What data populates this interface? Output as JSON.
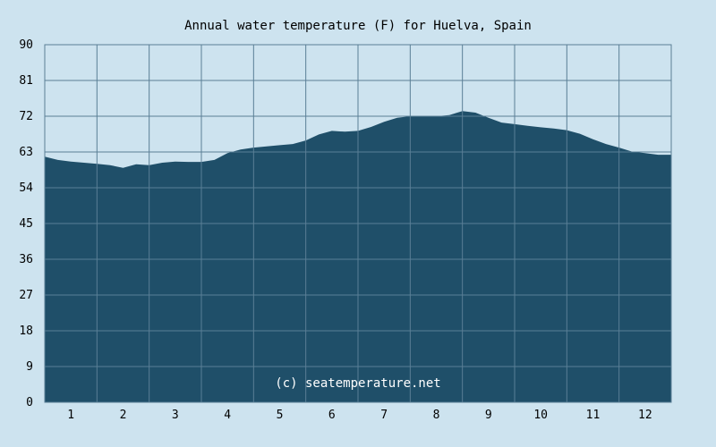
{
  "chart_data": {
    "type": "area",
    "title": "Annual water temperature (F) for Huelva, Spain",
    "xlabel": "",
    "ylabel": "",
    "x_ticks": [
      "1",
      "2",
      "3",
      "4",
      "5",
      "6",
      "7",
      "8",
      "9",
      "10",
      "11",
      "12"
    ],
    "y_ticks": [
      "0",
      "9",
      "18",
      "27",
      "36",
      "45",
      "54",
      "63",
      "72",
      "81",
      "90"
    ],
    "ylim": [
      0,
      90
    ],
    "xlim": [
      0.5,
      12.5
    ],
    "grid": true,
    "series": [
      {
        "values": [
          [
            0.5,
            61.8
          ],
          [
            0.75,
            61.0
          ],
          [
            1.0,
            60.6
          ],
          [
            1.25,
            60.3
          ],
          [
            1.5,
            60.0
          ],
          [
            1.75,
            59.7
          ],
          [
            2.0,
            59.0
          ],
          [
            2.25,
            59.9
          ],
          [
            2.5,
            59.7
          ],
          [
            2.75,
            60.3
          ],
          [
            3.0,
            60.6
          ],
          [
            3.25,
            60.5
          ],
          [
            3.5,
            60.5
          ],
          [
            3.75,
            61.0
          ],
          [
            4.0,
            62.7
          ],
          [
            4.25,
            63.6
          ],
          [
            4.5,
            64.1
          ],
          [
            4.75,
            64.4
          ],
          [
            5.0,
            64.7
          ],
          [
            5.25,
            65.0
          ],
          [
            5.5,
            65.9
          ],
          [
            5.75,
            67.4
          ],
          [
            6.0,
            68.3
          ],
          [
            6.25,
            68.1
          ],
          [
            6.5,
            68.3
          ],
          [
            6.75,
            69.3
          ],
          [
            7.0,
            70.6
          ],
          [
            7.25,
            71.6
          ],
          [
            7.5,
            72.0
          ],
          [
            7.75,
            72.1
          ],
          [
            8.0,
            72.0
          ],
          [
            8.25,
            72.3
          ],
          [
            8.5,
            73.3
          ],
          [
            8.75,
            72.9
          ],
          [
            9.0,
            71.6
          ],
          [
            9.25,
            70.4
          ],
          [
            9.5,
            70.0
          ],
          [
            9.75,
            69.6
          ],
          [
            10.0,
            69.2
          ],
          [
            10.25,
            68.9
          ],
          [
            10.5,
            68.5
          ],
          [
            10.75,
            67.6
          ],
          [
            11.0,
            66.2
          ],
          [
            11.25,
            65.0
          ],
          [
            11.5,
            64.1
          ],
          [
            11.75,
            63.1
          ],
          [
            12.0,
            62.7
          ],
          [
            12.25,
            62.3
          ],
          [
            12.5,
            62.3
          ]
        ]
      }
    ],
    "colors": {
      "background": "#cde3ef",
      "area": "#1f4f69",
      "grid": "#5a7f96"
    },
    "annotation": "(c) seatemperature.net"
  }
}
